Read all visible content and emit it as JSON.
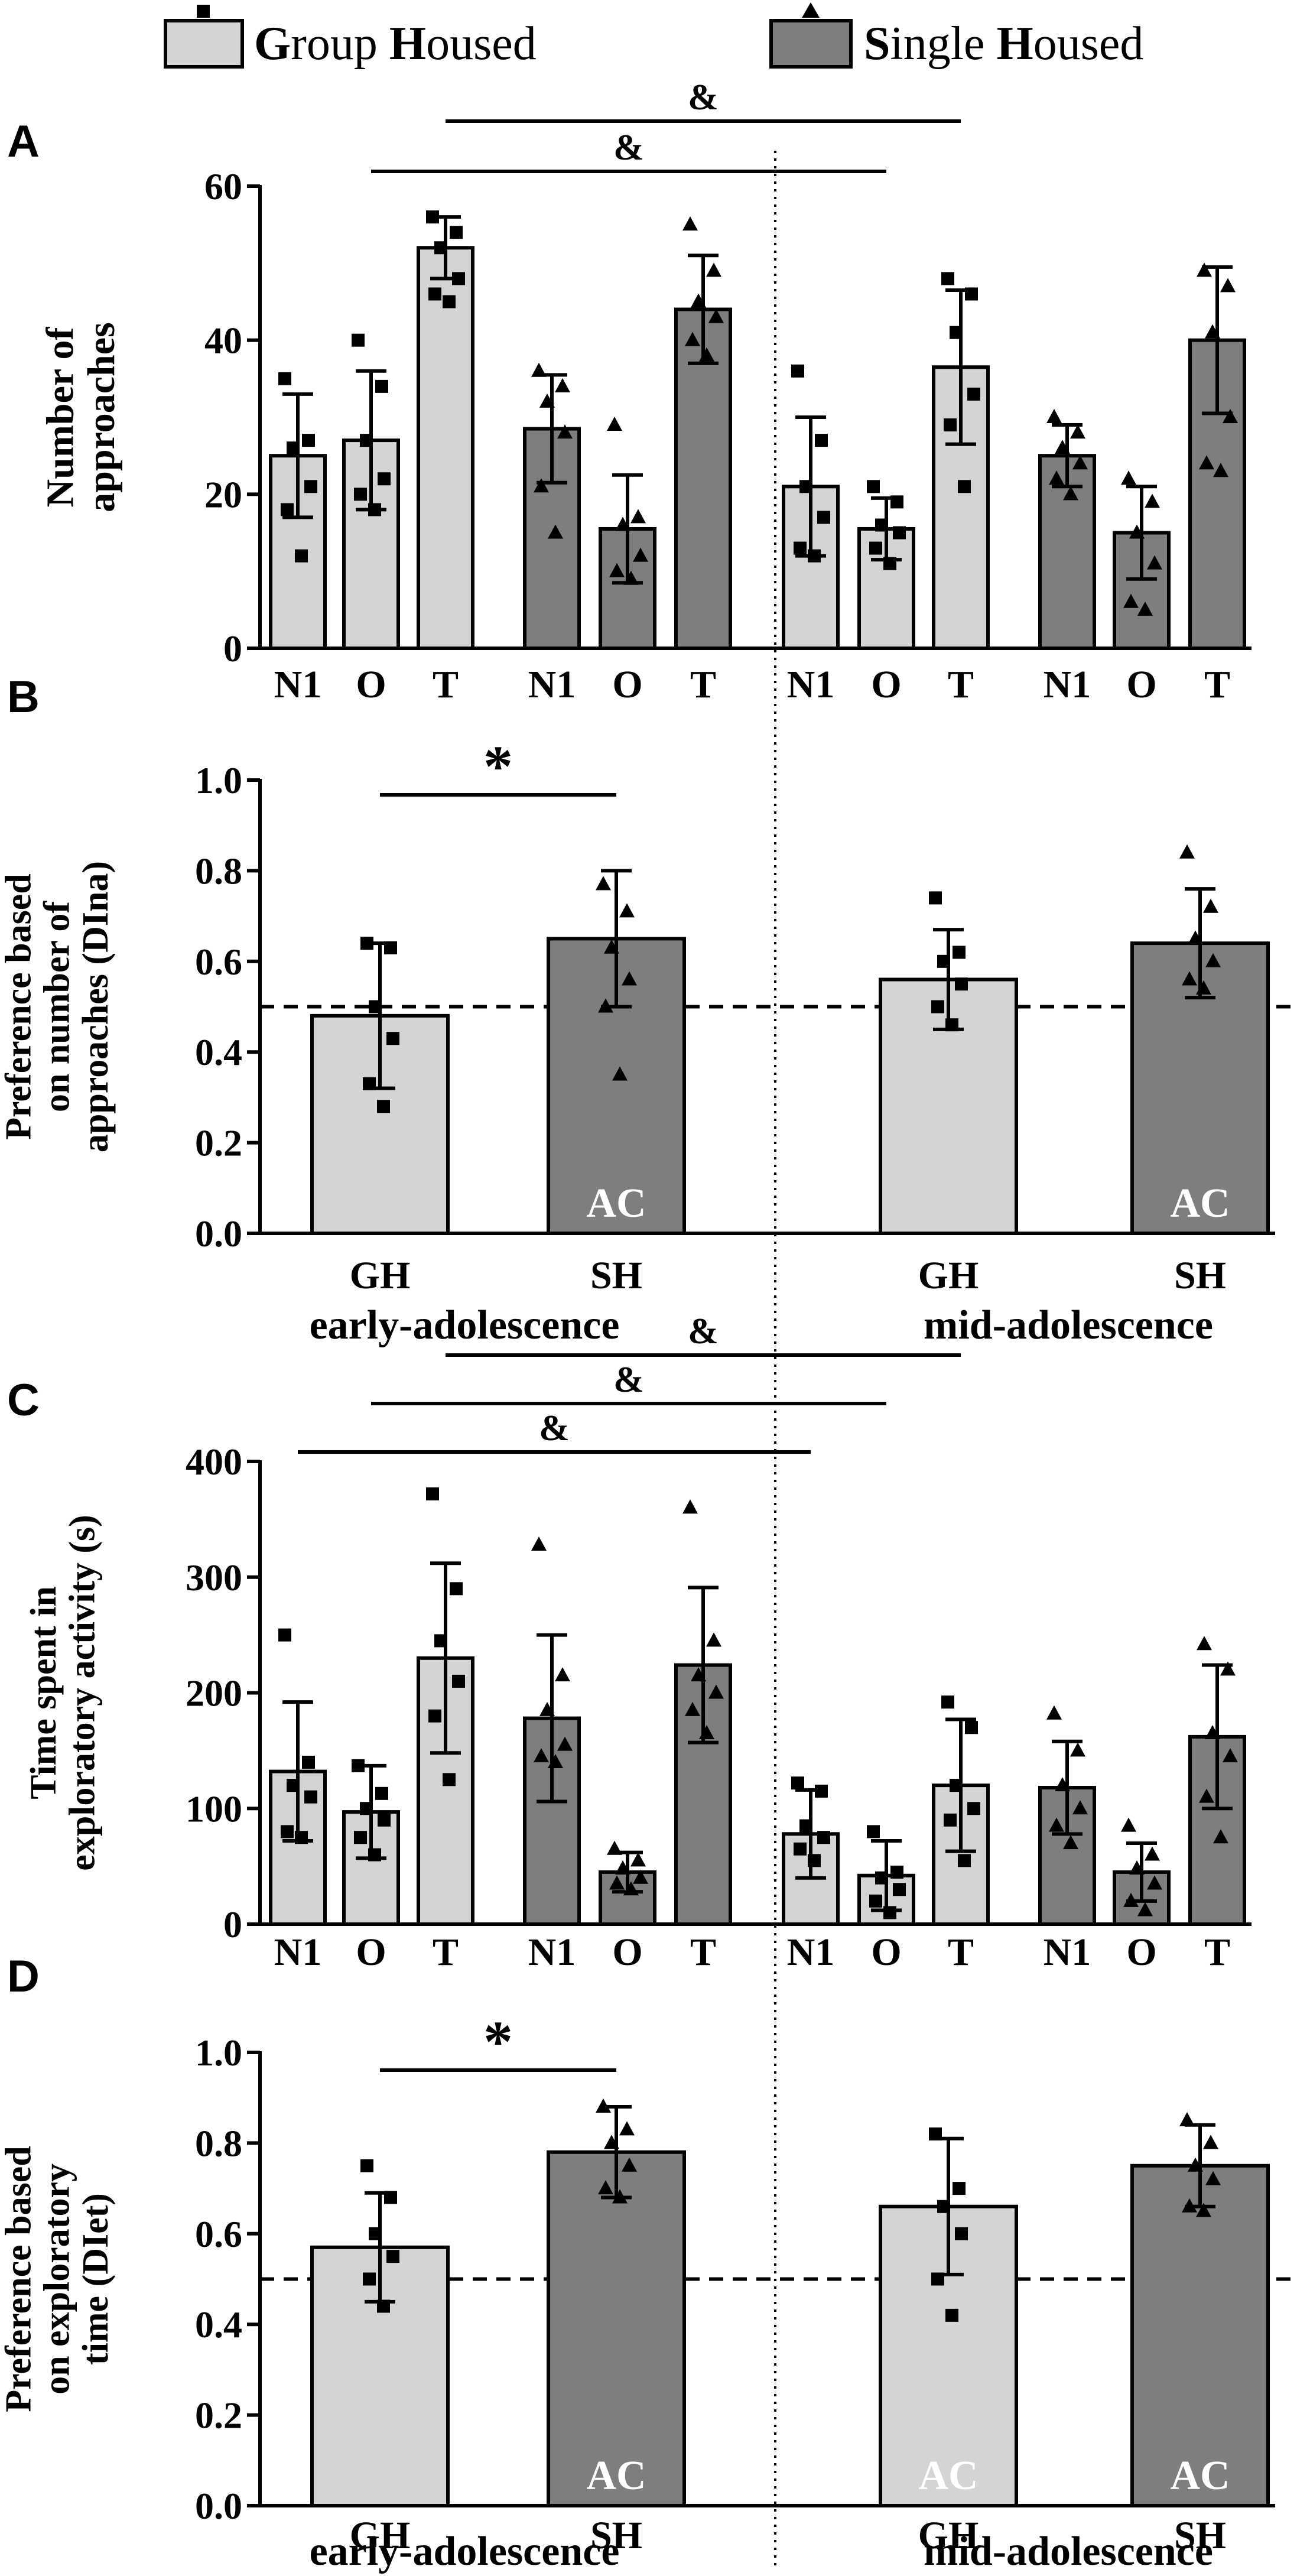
{
  "colors": {
    "group_housed": "#d4d4d4",
    "single_housed": "#7e7e7e",
    "stroke": "#000000",
    "ac_label": "#ffffff"
  },
  "legend": {
    "group_housed": {
      "initial1": "G",
      "rest1": "roup ",
      "initial2": "H",
      "rest2": "oused"
    },
    "single_housed": {
      "initial1": "S",
      "rest1": "ingle ",
      "initial2": "H",
      "rest2": "oused"
    }
  },
  "chart_data": [
    {
      "panel": "A",
      "type": "bar",
      "ylabel": [
        "Number of",
        "approaches"
      ],
      "ylim": [
        0,
        60
      ],
      "yticks": [
        0,
        20,
        40,
        60
      ],
      "categories": [
        "N1",
        "O",
        "T",
        "N1",
        "O",
        "T",
        "N1",
        "O",
        "T",
        "N1",
        "O",
        "T"
      ],
      "groups": [
        "GH",
        "GH",
        "GH",
        "SH",
        "SH",
        "SH",
        "GH",
        "GH",
        "GH",
        "SH",
        "SH",
        "SH"
      ],
      "values": [
        25,
        27,
        52,
        28.5,
        15.5,
        44,
        21,
        15.5,
        36.5,
        25,
        15,
        40
      ],
      "errors": [
        8,
        9,
        4,
        7,
        7,
        7,
        9,
        4,
        10,
        4,
        6,
        9.5
      ],
      "points": [
        [
          35,
          27,
          26,
          21,
          18,
          12
        ],
        [
          40,
          34,
          27,
          22,
          20,
          18
        ],
        [
          56,
          54,
          52,
          48,
          46,
          45
        ],
        [
          36,
          34,
          32,
          28,
          21,
          15
        ],
        [
          29,
          17,
          16,
          12,
          10,
          9
        ],
        [
          55,
          49,
          45,
          43,
          40,
          38
        ],
        [
          36,
          27,
          21,
          17,
          13,
          12
        ],
        [
          21,
          19,
          16,
          15,
          13,
          11
        ],
        [
          48,
          46,
          41,
          33,
          29,
          21
        ],
        [
          30,
          28,
          26,
          24,
          22,
          20
        ],
        [
          22,
          19,
          15,
          11,
          6,
          5
        ],
        [
          49,
          47,
          41,
          30,
          24,
          23
        ]
      ],
      "significance": [
        {
          "label": "&",
          "from_bar": 2,
          "to_bar": 8
        },
        {
          "label": "&",
          "from_bar": 1,
          "to_bar": 7
        }
      ]
    },
    {
      "panel": "B",
      "type": "bar",
      "ylabel": [
        "Preference based",
        "on number of",
        "approaches (DIna)"
      ],
      "ylim": [
        0,
        1.0
      ],
      "yticks": [
        "0.0",
        "0.2",
        "0.4",
        "0.6",
        "0.8",
        "1.0"
      ],
      "reference_line": 0.5,
      "categories": [
        "GH",
        "SH",
        "GH",
        "SH"
      ],
      "groups": [
        "GH",
        "SH",
        "GH",
        "SH"
      ],
      "values": [
        0.48,
        0.65,
        0.56,
        0.64
      ],
      "errors": [
        0.16,
        0.15,
        0.11,
        0.12
      ],
      "points": [
        [
          0.64,
          0.63,
          0.5,
          0.43,
          0.33,
          0.28
        ],
        [
          0.77,
          0.71,
          0.63,
          0.56,
          0.5,
          0.35
        ],
        [
          0.74,
          0.62,
          0.6,
          0.55,
          0.5,
          0.46
        ],
        [
          0.84,
          0.72,
          0.65,
          0.6,
          0.56,
          0.54
        ]
      ],
      "bar_annotations": [
        "",
        "AC",
        "",
        "AC"
      ],
      "significance": [
        {
          "label": "*",
          "from_bar": 0,
          "to_bar": 1
        }
      ],
      "group_labels": [
        "early-adolescence",
        "mid-adolescence"
      ]
    },
    {
      "panel": "C",
      "type": "bar",
      "ylabel": [
        "Time spent in",
        "exploratory activity (s)"
      ],
      "ylim": [
        0,
        400
      ],
      "yticks": [
        0,
        100,
        200,
        300,
        400
      ],
      "categories": [
        "N1",
        "O",
        "T",
        "N1",
        "O",
        "T",
        "N1",
        "O",
        "T",
        "N1",
        "O",
        "T"
      ],
      "groups": [
        "GH",
        "GH",
        "GH",
        "SH",
        "SH",
        "SH",
        "GH",
        "GH",
        "GH",
        "SH",
        "SH",
        "SH"
      ],
      "values": [
        132,
        97,
        230,
        178,
        45,
        224,
        78,
        42,
        120,
        118,
        45,
        162
      ],
      "errors": [
        60,
        40,
        82,
        72,
        17,
        67,
        38,
        30,
        57,
        40,
        25,
        62
      ],
      "points": [
        [
          250,
          140,
          120,
          110,
          80,
          75
        ],
        [
          137,
          113,
          100,
          90,
          75,
          60
        ],
        [
          372,
          290,
          245,
          210,
          180,
          125
        ],
        [
          328,
          215,
          185,
          155,
          145,
          140
        ],
        [
          65,
          55,
          48,
          40,
          35,
          30
        ],
        [
          360,
          245,
          215,
          200,
          185,
          165
        ],
        [
          122,
          115,
          85,
          75,
          65,
          55
        ],
        [
          80,
          45,
          40,
          30,
          20,
          10
        ],
        [
          192,
          170,
          120,
          100,
          90,
          55
        ],
        [
          182,
          150,
          120,
          100,
          85,
          70
        ],
        [
          85,
          60,
          48,
          35,
          20,
          12
        ],
        [
          242,
          220,
          165,
          145,
          110,
          75
        ]
      ],
      "significance": [
        {
          "label": "&",
          "from_bar": 2,
          "to_bar": 8
        },
        {
          "label": "&",
          "from_bar": 1,
          "to_bar": 7
        },
        {
          "label": "&",
          "from_bar": 0,
          "to_bar": 6
        }
      ]
    },
    {
      "panel": "D",
      "type": "bar",
      "ylabel": [
        "Preference based",
        "on exploratory",
        "time (DIet)"
      ],
      "ylim": [
        0,
        1.0
      ],
      "yticks": [
        "0.0",
        "0.2",
        "0.4",
        "0.6",
        "0.8",
        "1.0"
      ],
      "reference_line": 0.5,
      "categories": [
        "GH",
        "SH",
        "GH",
        "SH"
      ],
      "groups": [
        "GH",
        "SH",
        "GH",
        "SH"
      ],
      "values": [
        0.57,
        0.78,
        0.66,
        0.75
      ],
      "errors": [
        0.12,
        0.1,
        0.15,
        0.09
      ],
      "points": [
        [
          0.75,
          0.68,
          0.6,
          0.55,
          0.5,
          0.44
        ],
        [
          0.88,
          0.83,
          0.8,
          0.75,
          0.7,
          0.68
        ],
        [
          0.82,
          0.7,
          0.66,
          0.6,
          0.5,
          0.42
        ],
        [
          0.85,
          0.8,
          0.75,
          0.72,
          0.66,
          0.65
        ]
      ],
      "bar_annotations": [
        "",
        "AC",
        "AC",
        "AC"
      ],
      "significance": [
        {
          "label": "*",
          "from_bar": 0,
          "to_bar": 1
        }
      ],
      "group_labels": [
        "early-adolescence",
        "mid-adolescence"
      ]
    }
  ]
}
